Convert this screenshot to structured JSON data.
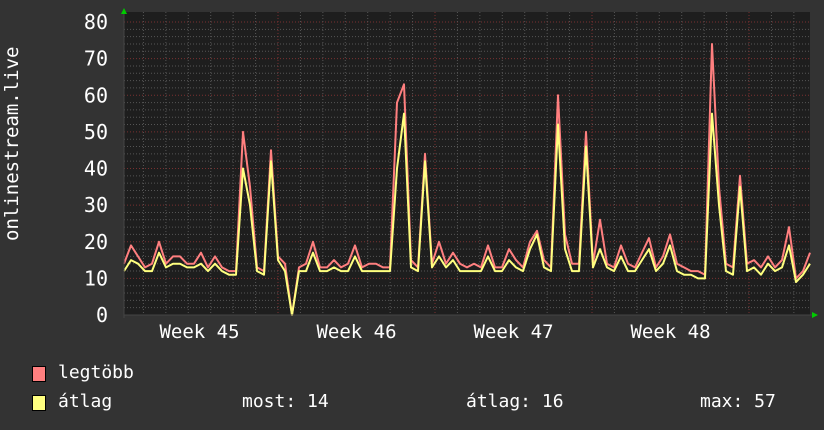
{
  "chart_data": {
    "type": "line",
    "ylabel": "onlinestream.live",
    "ylim": [
      0,
      80
    ],
    "yticks": [
      "0",
      "10",
      "20",
      "30",
      "40",
      "50",
      "60",
      "70",
      "80"
    ],
    "xticks": [
      "Week 45",
      "Week 46",
      "Week 47",
      "Week 48"
    ],
    "grid": true,
    "legend_placement": "bottom-left",
    "colors": {
      "background": "#333333",
      "plot": "#1e1e1e",
      "max": "#ff7f7f",
      "avg": "#ffff7f",
      "grid_major": "#7a3030",
      "grid_minor": "#555555",
      "arrow": "#00cc00"
    },
    "series": [
      {
        "name": "legtöbb",
        "color": "#ff7f7f",
        "values": [
          14,
          19,
          16,
          13,
          14,
          20,
          14,
          16,
          16,
          14,
          14,
          17,
          13,
          16,
          13,
          12,
          12,
          50,
          35,
          13,
          12,
          45,
          16,
          14,
          0,
          13,
          14,
          20,
          13,
          13,
          15,
          13,
          14,
          19,
          13,
          14,
          14,
          13,
          13,
          58,
          63,
          15,
          13,
          44,
          14,
          20,
          14,
          17,
          14,
          13,
          14,
          13,
          19,
          13,
          13,
          18,
          15,
          13,
          20,
          23,
          15,
          13,
          60,
          22,
          14,
          14,
          50,
          14,
          26,
          14,
          13,
          19,
          14,
          13,
          17,
          21,
          13,
          16,
          22,
          14,
          13,
          12,
          12,
          11,
          74,
          35,
          14,
          13,
          38,
          14,
          15,
          13,
          16,
          13,
          15,
          24,
          10,
          12,
          17
        ]
      },
      {
        "name": "átlag",
        "color": "#ffff7f",
        "values": [
          12,
          15,
          14,
          12,
          12,
          17,
          13,
          14,
          14,
          13,
          13,
          14,
          12,
          14,
          12,
          11,
          11,
          40,
          30,
          12,
          11,
          42,
          15,
          12,
          0,
          12,
          12,
          17,
          12,
          12,
          13,
          12,
          12,
          16,
          12,
          12,
          12,
          12,
          12,
          40,
          55,
          13,
          12,
          42,
          13,
          16,
          13,
          15,
          12,
          12,
          12,
          12,
          16,
          12,
          12,
          15,
          13,
          12,
          18,
          22,
          13,
          12,
          52,
          18,
          12,
          12,
          46,
          13,
          18,
          13,
          12,
          16,
          12,
          12,
          15,
          18,
          12,
          14,
          19,
          12,
          11,
          11,
          10,
          10,
          55,
          30,
          12,
          11,
          35,
          12,
          13,
          11,
          14,
          12,
          13,
          19,
          9,
          11,
          14
        ]
      }
    ]
  },
  "legend": {
    "items": [
      {
        "label": "legtöbb",
        "color": "#ff7f7f"
      },
      {
        "label": "átlag",
        "color": "#ffff7f"
      }
    ],
    "stats": {
      "now": "most: 14",
      "avg": "átlag: 16",
      "max": "max: 57"
    }
  }
}
